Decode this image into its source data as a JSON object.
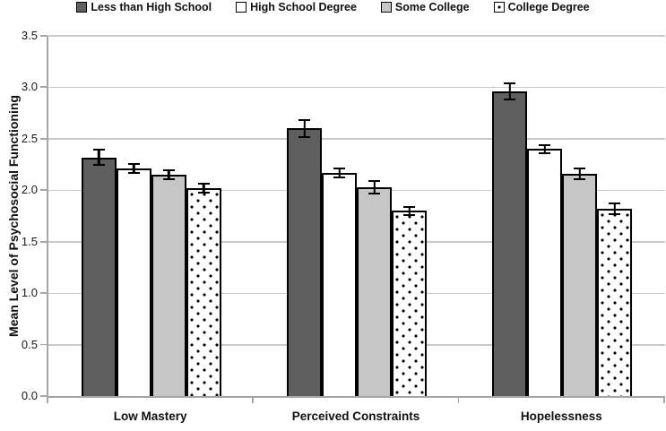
{
  "chart_data": {
    "type": "bar",
    "title": "",
    "xlabel": "",
    "ylabel": "Mean Level of Psychosocial Functioning",
    "categories": [
      "Low Mastery",
      "Perceived Constraints",
      "Hopelessness"
    ],
    "series": [
      {
        "name": "Less than High School",
        "values": [
          2.32,
          2.6,
          2.96
        ],
        "errors": [
          0.08,
          0.09,
          0.09
        ],
        "fill": "#5f5f5f",
        "pattern": "solid"
      },
      {
        "name": "High School Degree",
        "values": [
          2.21,
          2.17,
          2.4
        ],
        "errors": [
          0.05,
          0.05,
          0.05
        ],
        "fill": "#ffffff",
        "pattern": "solid"
      },
      {
        "name": "Some College",
        "values": [
          2.15,
          2.03,
          2.16
        ],
        "errors": [
          0.05,
          0.07,
          0.06
        ],
        "fill": "#c6c6c6",
        "pattern": "solid"
      },
      {
        "name": "College Degree",
        "values": [
          2.02,
          1.8,
          1.82
        ],
        "errors": [
          0.05,
          0.05,
          0.06
        ],
        "fill": "#ffffff",
        "pattern": "dots"
      }
    ],
    "ylim": [
      0,
      3.5
    ],
    "yticks": [
      0.0,
      0.5,
      1.0,
      1.5,
      2.0,
      2.5,
      3.0,
      3.5
    ],
    "grid": true,
    "error_bars": true,
    "legend_position": "top",
    "colors": {
      "bar_border": "#000000",
      "axis": "#a6a6a6",
      "gridline": "#c9c9c9",
      "dark_fill": "#5f5f5f",
      "light_fill": "#c6c6c6",
      "text": "#111111"
    }
  }
}
